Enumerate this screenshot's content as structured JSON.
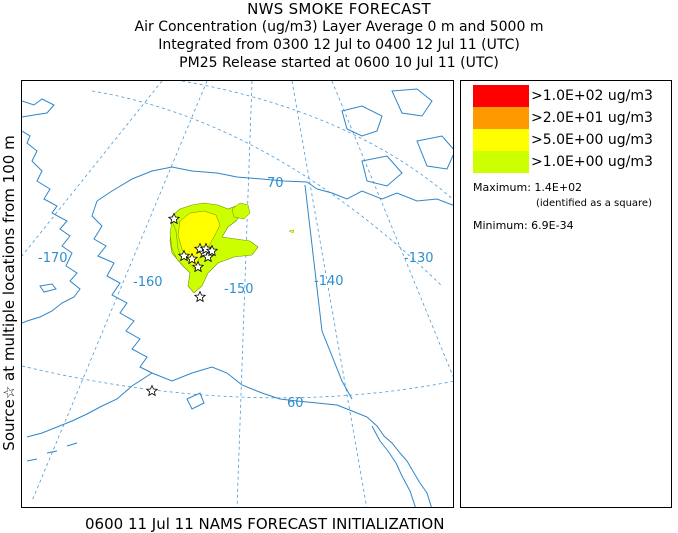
{
  "header": {
    "title": "NWS SMOKE FORECAST",
    "line2": "Air Concentration (ug/m3) Layer Average    0 m and  5000 m",
    "line3": "Integrated from 0300 12 Jul to 0400 12 Jul 11 (UTC)",
    "line4": "PM25 Release started at 0600 10 Jul 11 (UTC)"
  },
  "side_label": "Source☆ at multiple locations   from   100 m",
  "map": {
    "longitude_labels": [
      "-170",
      "-160",
      "-150",
      "-140",
      "-130"
    ],
    "latitude_labels": [
      "70",
      "60"
    ],
    "colors": {
      "graticule": "#4a9ad6",
      "coastline": "#2f86c9",
      "border": "#2f86c9"
    },
    "source_symbol": "star-icon",
    "plume_color_level": ">1.0E+00 ug/m3"
  },
  "legend": {
    "items": [
      {
        "label": ">1.0E+02 ug/m3",
        "color": "#ff0000"
      },
      {
        "label": ">2.0E+01 ug/m3",
        "color": "#ff9900"
      },
      {
        "label": ">5.0E+00 ug/m3",
        "color": "#ffff00"
      },
      {
        "label": ">1.0E+00 ug/m3",
        "color": "#ccff00"
      }
    ],
    "maximum": "Maximum: 1.4E+02",
    "maximum_note": "(identified as a square)",
    "minimum": "Minimum: 6.9E-34"
  },
  "footer": "0600 11 Jul 11 NAMS FORECAST INITIALIZATION"
}
